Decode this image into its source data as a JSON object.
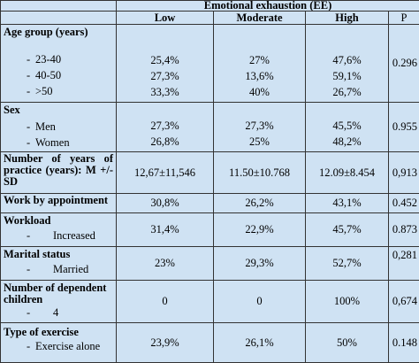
{
  "header": {
    "group_label": "Emotional exhaustion (EE)",
    "columns": [
      "Low",
      "Moderate",
      "High",
      "P"
    ]
  },
  "sections": {
    "age": {
      "title": "Age group (years)",
      "rows": [
        {
          "dash": "-",
          "label": "23-40",
          "low": "25,4%",
          "moderate": "27%",
          "high": "47,6%"
        },
        {
          "dash": "-",
          "label": "40-50",
          "low": "27,3%",
          "moderate": "13,6%",
          "high": "59,1%"
        },
        {
          "dash": "-",
          "label": ">50",
          "low": "33,3%",
          "moderate": "40%",
          "high": "26,7%"
        }
      ],
      "p": "0.296"
    },
    "sex": {
      "title": "Sex",
      "rows": [
        {
          "dash": "-",
          "label": "Men",
          "low": "27,3%",
          "moderate": "27,3%",
          "high": "45,5%"
        },
        {
          "dash": "-",
          "label": "Women",
          "low": "26,8%",
          "moderate": "25%",
          "high": "48,2%"
        }
      ],
      "p": "0.955"
    },
    "years": {
      "title": "Number of years of practice (years): M +/- SD",
      "low": "12,67±11,546",
      "moderate": "11.50±10.768",
      "high": "12.09±8.454",
      "p": "0,913"
    },
    "appointment": {
      "title": "Work by appointment",
      "low": "30,8%",
      "moderate": "26,2%",
      "high": "43,1%",
      "p": "0.452"
    },
    "workload": {
      "title": "Workload",
      "dash": "-",
      "label": "Increased",
      "low": "31,4%",
      "moderate": "22,9%",
      "high": "45,7%",
      "p": "0.873"
    },
    "marital": {
      "title": "Marital status",
      "dash": "-",
      "label": "Married",
      "low": "23%",
      "moderate": "29,3%",
      "high": "52,7%",
      "p": "0,281"
    },
    "dependents": {
      "title": "Number of dependent children",
      "dash": "-",
      "label": "4",
      "low": "0",
      "moderate": "0",
      "high": "100%",
      "p": "0,674"
    },
    "exercise": {
      "title": "Type of exercise",
      "dash": "-",
      "label": "Exercise alone",
      "low": "23,9%",
      "moderate": "26,1%",
      "high": "50%",
      "p": "0.148"
    }
  }
}
